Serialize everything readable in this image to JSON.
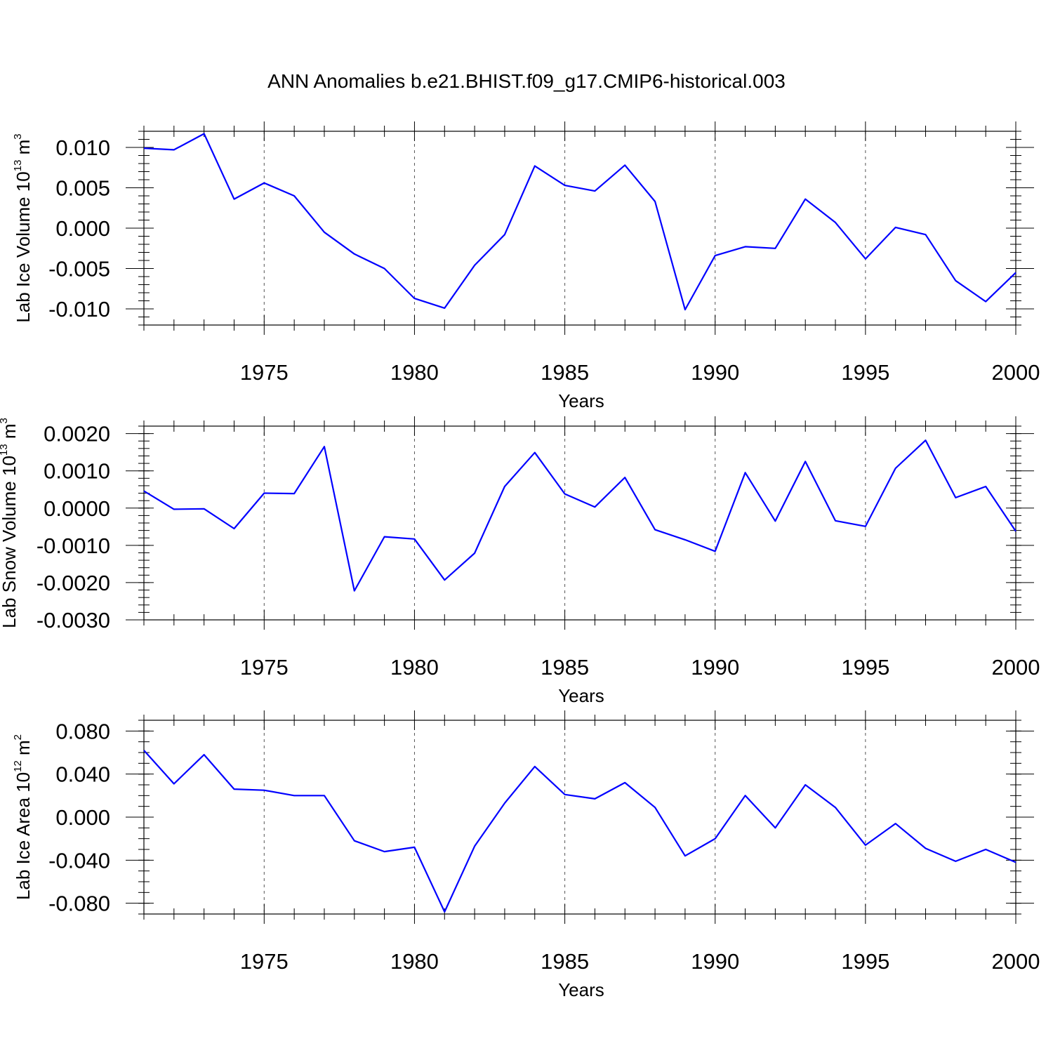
{
  "title": "ANN Anomalies b.e21.BHIST.f09_g17.CMIP6-historical.003",
  "colors": {
    "series": "#0000ff",
    "axis": "#000000",
    "grid": "#555555"
  },
  "chart_data": [
    {
      "type": "line",
      "ylabel_main": "Lab Ice Volume 10",
      "ylabel_exp": "13",
      "ylabel_unit": " m",
      "ylabel_unit_exp": "3",
      "xlabel": "Years",
      "xlim": [
        1971,
        2000
      ],
      "ylim": [
        -0.012,
        0.012
      ],
      "xticks": [
        1975,
        1980,
        1985,
        1990,
        1995,
        2000
      ],
      "yticks": [
        0.01,
        0.005,
        0.0,
        -0.005,
        -0.01
      ],
      "ytick_labels": [
        "0.010",
        "0.005",
        "0.000",
        "-0.005",
        "-0.010"
      ],
      "ytick_minor_step": 0.001,
      "grid": "vertical dashed at major x ticks",
      "x": [
        1971,
        1972,
        1973,
        1974,
        1975,
        1976,
        1977,
        1978,
        1979,
        1980,
        1981,
        1982,
        1983,
        1984,
        1985,
        1986,
        1987,
        1988,
        1989,
        1990,
        1991,
        1992,
        1993,
        1994,
        1995,
        1996,
        1997,
        1998,
        1999,
        2000
      ],
      "values": [
        0.0099,
        0.0097,
        0.0117,
        0.0036,
        0.0056,
        0.004,
        -0.0005,
        -0.0032,
        -0.005,
        -0.0087,
        -0.0099,
        -0.0046,
        -0.0008,
        0.0077,
        0.0053,
        0.0046,
        0.0078,
        0.0033,
        -0.0101,
        -0.0034,
        -0.0023,
        -0.0025,
        0.0036,
        0.0007,
        -0.0038,
        0.0001,
        -0.0008,
        -0.0065,
        -0.0091,
        -0.0055
      ]
    },
    {
      "type": "line",
      "ylabel_main": "Lab Snow Volume 10",
      "ylabel_exp": "13",
      "ylabel_unit": " m",
      "ylabel_unit_exp": "3",
      "xlabel": "Years",
      "xlim": [
        1971,
        2000
      ],
      "ylim": [
        -0.003,
        0.0022
      ],
      "xticks": [
        1975,
        1980,
        1985,
        1990,
        1995,
        2000
      ],
      "yticks": [
        0.002,
        0.001,
        0.0,
        -0.001,
        -0.002,
        -0.003
      ],
      "ytick_labels": [
        "0.0020",
        "0.0010",
        "0.0000",
        "-0.0010",
        "-0.0020",
        "-0.0030"
      ],
      "ytick_minor_step": 0.0002,
      "grid": "vertical dashed at major x ticks",
      "x": [
        1971,
        1972,
        1973,
        1974,
        1975,
        1976,
        1977,
        1978,
        1979,
        1980,
        1981,
        1982,
        1983,
        1984,
        1985,
        1986,
        1987,
        1988,
        1989,
        1990,
        1991,
        1992,
        1993,
        1994,
        1995,
        1996,
        1997,
        1998,
        1999,
        2000
      ],
      "values": [
        0.00046,
        -3e-05,
        -2e-05,
        -0.00055,
        0.0004,
        0.00039,
        0.00165,
        -0.00222,
        -0.00077,
        -0.00083,
        -0.00193,
        -0.00121,
        0.00058,
        0.00149,
        0.00038,
        3e-05,
        0.00082,
        -0.00058,
        -0.00085,
        -0.00116,
        0.00095,
        -0.00035,
        0.00125,
        -0.00034,
        -0.00049,
        0.00107,
        0.00182,
        0.00028,
        0.00058,
        -0.00062
      ]
    },
    {
      "type": "line",
      "ylabel_main": "Lab Ice Area 10",
      "ylabel_exp": "12",
      "ylabel_unit": " m",
      "ylabel_unit_exp": "2",
      "xlabel": "Years",
      "xlim": [
        1971,
        2000
      ],
      "ylim": [
        -0.09,
        0.09
      ],
      "xticks": [
        1975,
        1980,
        1985,
        1990,
        1995,
        2000
      ],
      "yticks": [
        0.08,
        0.04,
        0.0,
        -0.04,
        -0.08
      ],
      "ytick_labels": [
        "0.080",
        "0.040",
        "0.000",
        "-0.040",
        "-0.080"
      ],
      "ytick_minor_step": 0.01,
      "grid": "vertical dashed at major x ticks",
      "x": [
        1971,
        1972,
        1973,
        1974,
        1975,
        1976,
        1977,
        1978,
        1979,
        1980,
        1981,
        1982,
        1983,
        1984,
        1985,
        1986,
        1987,
        1988,
        1989,
        1990,
        1991,
        1992,
        1993,
        1994,
        1995,
        1996,
        1997,
        1998,
        1999,
        2000
      ],
      "values": [
        0.062,
        0.031,
        0.058,
        0.026,
        0.025,
        0.02,
        0.02,
        -0.022,
        -0.032,
        -0.028,
        -0.088,
        -0.027,
        0.013,
        0.047,
        0.021,
        0.017,
        0.032,
        0.009,
        -0.036,
        -0.02,
        0.02,
        -0.01,
        0.03,
        0.009,
        -0.026,
        -0.006,
        -0.029,
        -0.041,
        -0.03,
        -0.042
      ]
    }
  ]
}
